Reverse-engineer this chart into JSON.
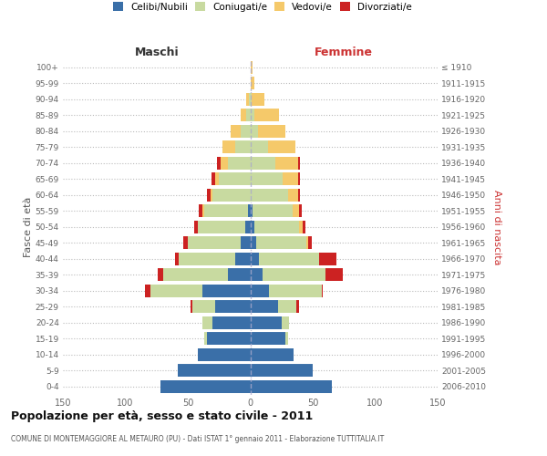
{
  "age_groups": [
    "0-4",
    "5-9",
    "10-14",
    "15-19",
    "20-24",
    "25-29",
    "30-34",
    "35-39",
    "40-44",
    "45-49",
    "50-54",
    "55-59",
    "60-64",
    "65-69",
    "70-74",
    "75-79",
    "80-84",
    "85-89",
    "90-94",
    "95-99",
    "100+"
  ],
  "birth_years": [
    "2006-2010",
    "2001-2005",
    "1996-2000",
    "1991-1995",
    "1986-1990",
    "1981-1985",
    "1976-1980",
    "1971-1975",
    "1966-1970",
    "1961-1965",
    "1956-1960",
    "1951-1955",
    "1946-1950",
    "1941-1945",
    "1936-1940",
    "1931-1935",
    "1926-1930",
    "1921-1925",
    "1916-1920",
    "1911-1915",
    "≤ 1910"
  ],
  "male_celibi": [
    72,
    58,
    42,
    35,
    30,
    28,
    38,
    18,
    12,
    8,
    4,
    2,
    0,
    0,
    0,
    0,
    0,
    0,
    0,
    0,
    0
  ],
  "male_coniugati": [
    0,
    0,
    0,
    2,
    8,
    18,
    42,
    52,
    45,
    42,
    38,
    35,
    30,
    25,
    18,
    12,
    8,
    3,
    1,
    0,
    0
  ],
  "male_vedovi": [
    0,
    0,
    0,
    0,
    0,
    0,
    0,
    0,
    0,
    0,
    0,
    1,
    2,
    3,
    6,
    10,
    8,
    5,
    2,
    0,
    0
  ],
  "male_divorziati": [
    0,
    0,
    0,
    0,
    0,
    2,
    4,
    4,
    3,
    4,
    3,
    3,
    3,
    3,
    3,
    0,
    0,
    0,
    0,
    0,
    0
  ],
  "female_celibi": [
    65,
    50,
    35,
    28,
    25,
    22,
    15,
    10,
    7,
    5,
    3,
    2,
    0,
    0,
    0,
    0,
    0,
    0,
    0,
    0,
    0
  ],
  "female_coniugati": [
    0,
    0,
    0,
    2,
    6,
    15,
    42,
    50,
    48,
    40,
    36,
    32,
    30,
    26,
    20,
    14,
    6,
    3,
    1,
    0,
    0
  ],
  "female_vedovi": [
    0,
    0,
    0,
    0,
    0,
    0,
    0,
    0,
    0,
    1,
    3,
    5,
    8,
    12,
    18,
    22,
    22,
    20,
    10,
    3,
    2
  ],
  "female_divorziati": [
    0,
    0,
    0,
    0,
    0,
    2,
    1,
    14,
    14,
    3,
    2,
    2,
    2,
    2,
    2,
    0,
    0,
    0,
    0,
    0,
    0
  ],
  "colors": {
    "celibi": "#3a6fa8",
    "coniugati": "#c8daa0",
    "vedovi": "#f5c96a",
    "divorziati": "#cc2222"
  },
  "xlim": 150,
  "title": "Popolazione per età, sesso e stato civile - 2011",
  "subtitle": "COMUNE DI MONTEMAGGIORE AL METAURO (PU) - Dati ISTAT 1° gennaio 2011 - Elaborazione TUTTITALIA.IT",
  "ylabel_left": "Fasce di età",
  "ylabel_right": "Anni di nascita",
  "label_maschi": "Maschi",
  "label_femmine": "Femmine",
  "bg_color": "#ffffff",
  "grid_color": "#cccccc"
}
